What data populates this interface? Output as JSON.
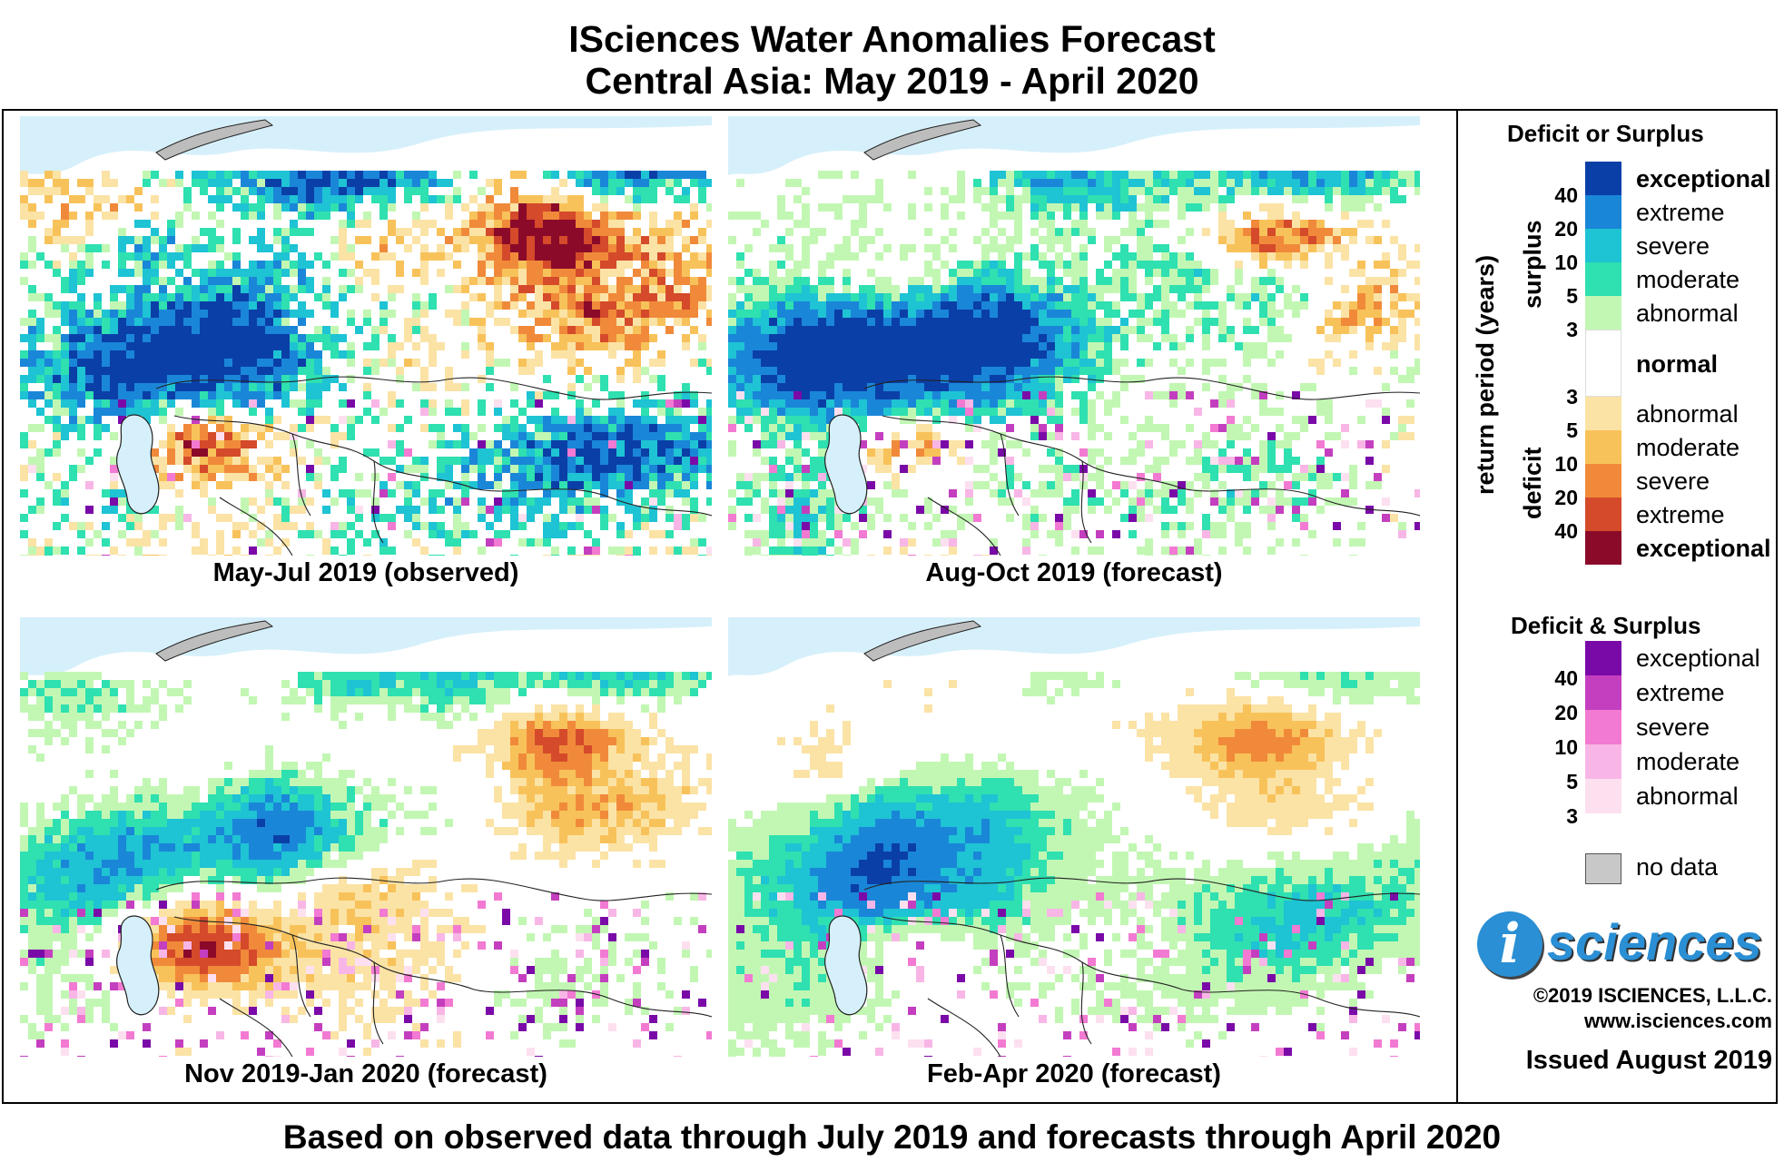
{
  "title": "ISciences Water Anomalies Forecast",
  "subtitle": "Central Asia: May 2019 - April 2020",
  "footer": "Based on observed data through July 2019 and forecasts through April 2020",
  "panels": [
    {
      "caption": "May-Jul 2019 (observed)"
    },
    {
      "caption": "Aug-Oct 2019 (forecast)"
    },
    {
      "caption": "Nov 2019-Jan 2020 (forecast)"
    },
    {
      "caption": "Feb-Apr 2020 (forecast)"
    }
  ],
  "legend": {
    "section1_title": "Deficit or Surplus",
    "axis_label": "return period (years)",
    "surplus_label": "surplus",
    "deficit_label": "deficit",
    "surplus_items": [
      {
        "label": "exceptional",
        "color": "#0b3fa8",
        "bold": true
      },
      {
        "label": "extreme",
        "color": "#1a86d8",
        "bold": false
      },
      {
        "label": "severe",
        "color": "#1ec3d4",
        "bold": false
      },
      {
        "label": "moderate",
        "color": "#2fe0b0",
        "bold": false
      },
      {
        "label": "abnormal",
        "color": "#c2f7b3",
        "bold": false
      }
    ],
    "normal_label": "normal",
    "deficit_items": [
      {
        "label": "abnormal",
        "color": "#fbe3a6",
        "bold": false
      },
      {
        "label": "moderate",
        "color": "#f8c25a",
        "bold": false
      },
      {
        "label": "severe",
        "color": "#f08a3a",
        "bold": false
      },
      {
        "label": "extreme",
        "color": "#d44a2a",
        "bold": false
      },
      {
        "label": "exceptional",
        "color": "#8b0a2a",
        "bold": true
      }
    ],
    "surplus_ticks": [
      "40",
      "20",
      "10",
      "5",
      "3"
    ],
    "deficit_ticks": [
      "3",
      "5",
      "10",
      "20",
      "40"
    ],
    "section2_title": "Deficit & Surplus",
    "both_items": [
      {
        "label": "exceptional",
        "color": "#7a0aa8"
      },
      {
        "label": "extreme",
        "color": "#c43fbf"
      },
      {
        "label": "severe",
        "color": "#f27ad2"
      },
      {
        "label": "moderate",
        "color": "#f8b6e6"
      },
      {
        "label": "abnormal",
        "color": "#fde0f0"
      }
    ],
    "both_ticks": [
      "40",
      "20",
      "10",
      "5",
      "3"
    ],
    "nodata_label": "no data",
    "nodata_color": "#c8c8c8"
  },
  "logo": {
    "letter": "i",
    "text": "sciences",
    "color": "#2a8fd4"
  },
  "copyright": "©2019 ISCIENCES, L.L.C.",
  "website": "www.isciences.com",
  "issued": "Issued August 2019",
  "map_colors": {
    "water": "#d6f0fb",
    "land": "#ffffff",
    "border": "#222222",
    "nodata": "#bdbdbd"
  }
}
